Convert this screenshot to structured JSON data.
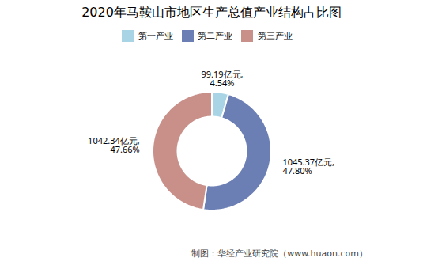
{
  "chart_data": {
    "type": "pie",
    "title": "2020年马鞍山市地区生产总值产业结构占比图",
    "categories": [
      "第一产业",
      "第二产业",
      "第三产业"
    ],
    "values": [
      99.19,
      1045.37,
      1042.34
    ],
    "colors": [
      "#a8d4e6",
      "#6b7fb5",
      "#c9908a"
    ],
    "data_labels": true,
    "value_labels": [
      "99.19亿元,\n4.54%",
      "1045.37亿元,\n47.80%",
      "1042.34亿元,\n47.66%"
    ],
    "legend": "top",
    "caption": "制图：华经产业研究院（www.huaon.com）"
  }
}
